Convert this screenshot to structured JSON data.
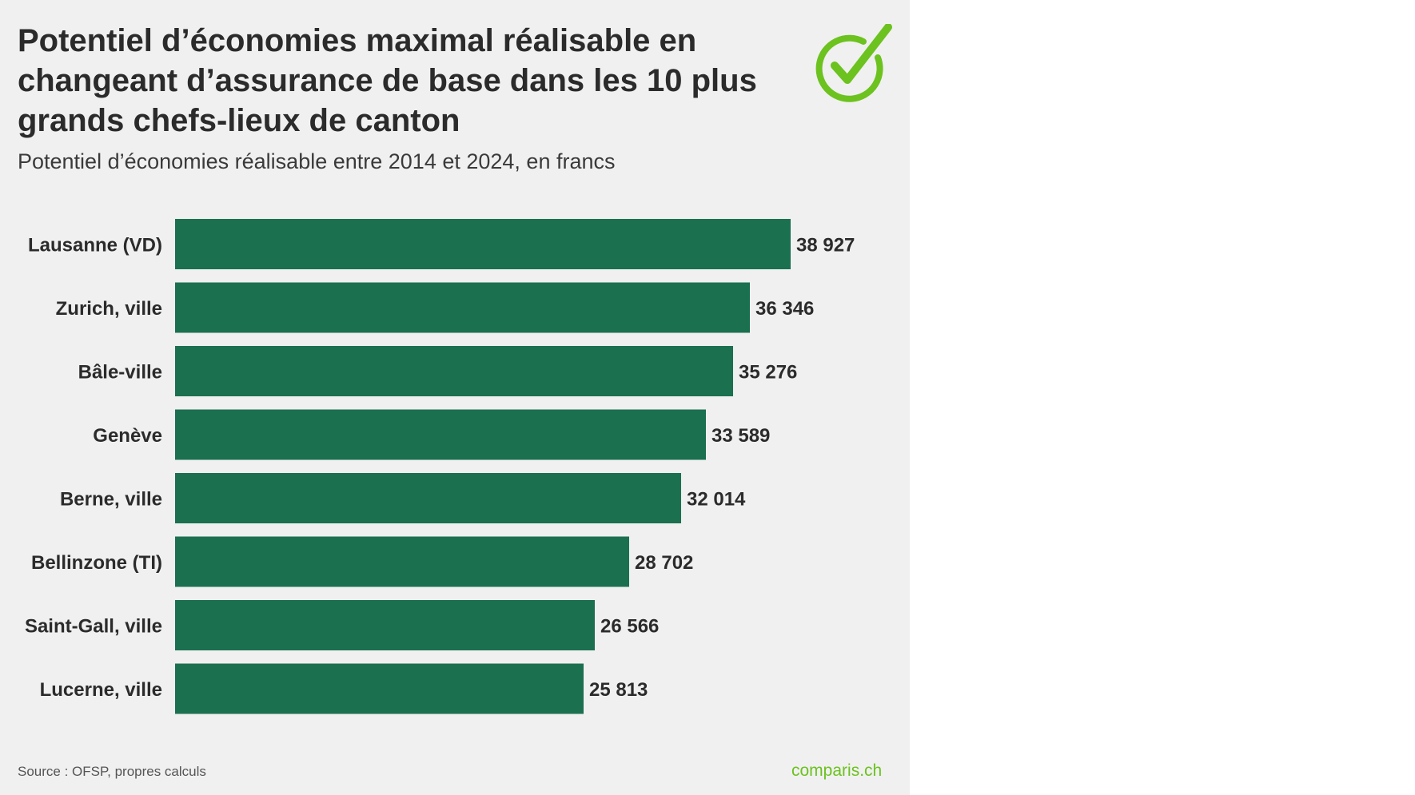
{
  "header": {
    "title": "Potentiel d’économies maximal réalisable en changeant d’assurance de base dans les 10 plus grands chefs-lieux de canton",
    "subtitle": "Potentiel d’économies réalisable entre 2014 et 2024, en francs"
  },
  "footer": {
    "source": "Source : OFSP, propres calculs",
    "brand": "comparis.ch"
  },
  "colors": {
    "bar": "#1b7050",
    "brand_green": "#6cc21e",
    "background": "#f0f0f0",
    "text": "#2b2b2b"
  },
  "chart_data": {
    "type": "bar",
    "orientation": "horizontal",
    "title": "Potentiel d’économies maximal réalisable en changeant d’assurance de base dans les 10 plus grands chefs-lieux de canton",
    "subtitle": "Potentiel d’économies réalisable entre 2014 et 2024, en francs",
    "categories": [
      "Lausanne (VD)",
      "Zurich, ville",
      "Bâle-ville",
      "Genève",
      "Berne, ville",
      "Bellinzone (TI)",
      "Saint-Gall, ville",
      "Lucerne, ville"
    ],
    "values": [
      38927,
      36346,
      35276,
      33589,
      32014,
      28702,
      26566,
      25813
    ],
    "value_labels": [
      "38 927",
      "36 346",
      "35 276",
      "33 589",
      "32 014",
      "28 702",
      "26 566",
      "25 813"
    ],
    "xlabel": "",
    "ylabel": "",
    "xlim": [
      0,
      38927
    ],
    "grid": false,
    "legend": "none"
  }
}
